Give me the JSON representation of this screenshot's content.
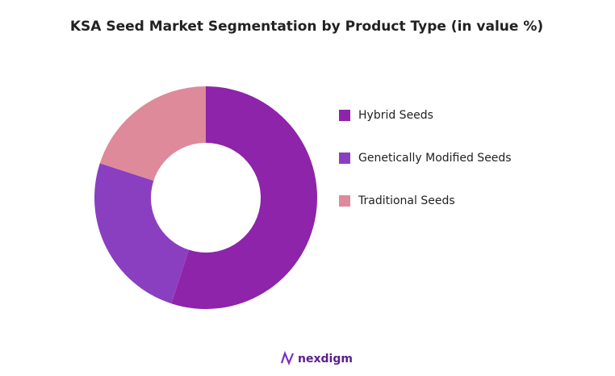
{
  "chart_data": {
    "type": "donut",
    "title": "KSA Seed Market Segmentation by Product Type (in value %)",
    "categories": [
      "Hybrid Seeds",
      "Genetically Modified Seeds",
      "Traditional Seeds"
    ],
    "values": [
      55,
      25,
      20
    ],
    "colors": [
      "#8e24aa",
      "#8a3fc0",
      "#de8a9a"
    ],
    "legend": "right"
  },
  "footer": {
    "logo": "nexdigm"
  }
}
